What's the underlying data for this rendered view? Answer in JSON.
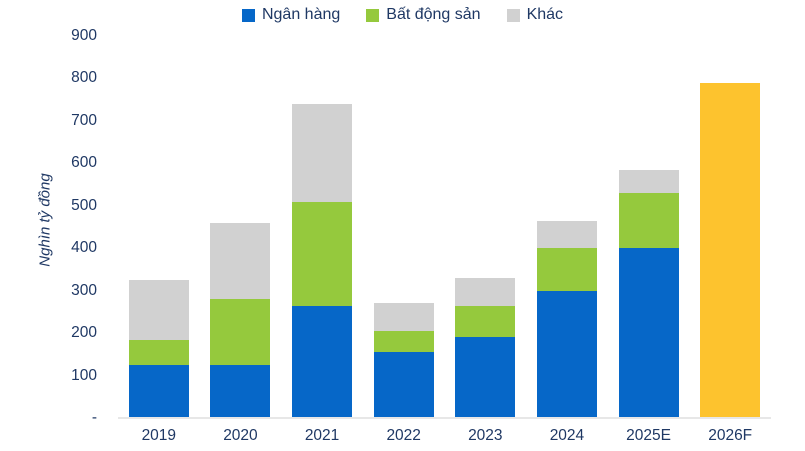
{
  "colors": {
    "text": "#1F3864",
    "axis_line": "#E7E7E7",
    "bank": "#0667C8",
    "real_estate": "#95C93D",
    "other": "#D1D1D1",
    "highlight": "#FDC32E"
  },
  "chart_data": {
    "type": "bar",
    "stacked": true,
    "title": "",
    "xlabel": "",
    "ylabel": "Nghìn tỷ đồng",
    "ylim": [
      0,
      900
    ],
    "ytick_step": 100,
    "yticks": [
      {
        "value": 0,
        "label": "-"
      },
      {
        "value": 100,
        "label": "100"
      },
      {
        "value": 200,
        "label": "200"
      },
      {
        "value": 300,
        "label": "300"
      },
      {
        "value": 400,
        "label": "400"
      },
      {
        "value": 500,
        "label": "500"
      },
      {
        "value": 600,
        "label": "600"
      },
      {
        "value": 700,
        "label": "700"
      },
      {
        "value": 800,
        "label": "800"
      },
      {
        "value": 900,
        "label": "900"
      }
    ],
    "categories": [
      "2019",
      "2020",
      "2021",
      "2022",
      "2023",
      "2024",
      "2025E",
      "2026F"
    ],
    "series": [
      {
        "name": "Ngân hàng",
        "color_key": "bank",
        "values": [
          125,
          125,
          265,
          155,
          190,
          300,
          400,
          0
        ]
      },
      {
        "name": "Bất động sản",
        "color_key": "real_estate",
        "values": [
          60,
          155,
          245,
          50,
          75,
          100,
          130,
          0
        ]
      },
      {
        "name": "Khác",
        "color_key": "other",
        "values": [
          140,
          180,
          230,
          65,
          65,
          65,
          55,
          0
        ]
      }
    ],
    "highlight_bar": {
      "category": "2026F",
      "value": 790,
      "color_key": "highlight"
    },
    "legend_position": "top",
    "grid": false
  }
}
